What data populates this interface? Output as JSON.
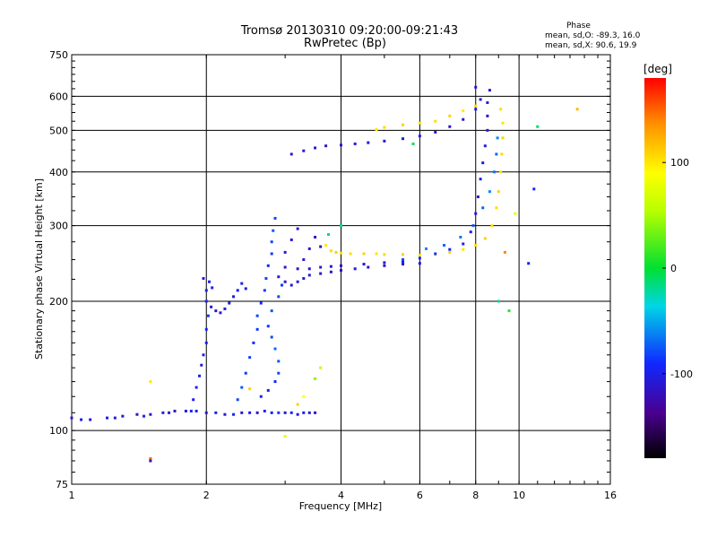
{
  "header": {
    "title_line1": "Tromsø 20130310 09:20:00-09:21:43",
    "title_line2": "RwPretec (Bp)"
  },
  "phase_box": {
    "heading": "Phase",
    "o_line": "mean, sd,O: -89.3, 16.0",
    "x_line": "mean, sd,X:  90.6, 19.9"
  },
  "colorbar": {
    "unit": "[deg]",
    "ticks": [
      {
        "value": 100,
        "label": "100"
      },
      {
        "value": 0,
        "label": "0"
      },
      {
        "value": -100,
        "label": "-100"
      }
    ],
    "range": [
      -180,
      180
    ]
  },
  "chart_data": {
    "type": "scatter",
    "title": "Tromsø 20130310 09:20:00-09:21:43",
    "subtitle": "RwPretec (Bp)",
    "xlabel": "Frequency [MHz]",
    "ylabel": "Stationary phase Virtual Height [km]",
    "x_scale": "log",
    "y_scale": "log",
    "xlim": [
      1,
      16
    ],
    "ylim": [
      75,
      750
    ],
    "grid": true,
    "x_ticks": [
      {
        "value": 1,
        "label": "1"
      },
      {
        "value": 2,
        "label": "2"
      },
      {
        "value": 4,
        "label": "4"
      },
      {
        "value": 6,
        "label": "6"
      },
      {
        "value": 8,
        "label": "8"
      },
      {
        "value": 10,
        "label": "10"
      },
      {
        "value": 16,
        "label": "16"
      }
    ],
    "y_ticks": [
      {
        "value": 75,
        "label": "75"
      },
      {
        "value": 100,
        "label": "100"
      },
      {
        "value": 200,
        "label": "200"
      },
      {
        "value": 300,
        "label": "300"
      },
      {
        "value": 400,
        "label": "400"
      },
      {
        "value": 500,
        "label": "500"
      },
      {
        "value": 600,
        "label": "600"
      },
      {
        "value": 750,
        "label": "750"
      }
    ],
    "points": [
      [
        1.0,
        107,
        -110
      ],
      [
        1.1,
        106,
        -105
      ],
      [
        1.2,
        107,
        -100
      ],
      [
        1.3,
        108,
        -110
      ],
      [
        1.4,
        109,
        -115
      ],
      [
        1.5,
        109,
        -110
      ],
      [
        1.6,
        110,
        -105
      ],
      [
        1.7,
        111,
        -115
      ],
      [
        1.8,
        111,
        -110
      ],
      [
        1.9,
        111,
        -100
      ],
      [
        2.0,
        110,
        -110
      ],
      [
        2.2,
        109,
        -105
      ],
      [
        2.4,
        110,
        -110
      ],
      [
        2.6,
        110,
        -115
      ],
      [
        2.8,
        110,
        -100
      ],
      [
        3.0,
        110,
        -110
      ],
      [
        3.2,
        109,
        -105
      ],
      [
        3.4,
        110,
        -110
      ],
      [
        3.5,
        110,
        -120
      ],
      [
        1.05,
        106,
        -100
      ],
      [
        1.25,
        107,
        -105
      ],
      [
        1.45,
        108,
        -95
      ],
      [
        1.65,
        110,
        -100
      ],
      [
        1.85,
        111,
        -95
      ],
      [
        2.1,
        110,
        -100
      ],
      [
        2.3,
        109,
        -95
      ],
      [
        2.5,
        110,
        -100
      ],
      [
        2.7,
        111,
        -95
      ],
      [
        2.9,
        110,
        -85
      ],
      [
        3.1,
        110,
        -95
      ],
      [
        3.3,
        110,
        -100
      ],
      [
        1.87,
        118,
        -100
      ],
      [
        1.9,
        126,
        -95
      ],
      [
        1.93,
        134,
        -100
      ],
      [
        1.95,
        142,
        -105
      ],
      [
        1.97,
        150,
        -100
      ],
      [
        2.0,
        160,
        -95
      ],
      [
        2.0,
        172,
        -90
      ],
      [
        2.02,
        185,
        -85
      ],
      [
        2.0,
        200,
        -95
      ],
      [
        2.0,
        212,
        -100
      ],
      [
        1.97,
        226,
        -105
      ],
      [
        2.03,
        222,
        -95
      ],
      [
        2.06,
        215,
        -100
      ],
      [
        2.05,
        194,
        -110
      ],
      [
        2.1,
        190,
        -115
      ],
      [
        2.15,
        188,
        -110
      ],
      [
        2.2,
        192,
        -105
      ],
      [
        2.25,
        198,
        -100
      ],
      [
        2.3,
        205,
        -105
      ],
      [
        2.35,
        212,
        -100
      ],
      [
        2.4,
        220,
        -95
      ],
      [
        2.45,
        214,
        -100
      ],
      [
        2.35,
        118,
        -80
      ],
      [
        2.4,
        126,
        -75
      ],
      [
        2.45,
        136,
        -85
      ],
      [
        2.5,
        148,
        -80
      ],
      [
        2.55,
        160,
        -90
      ],
      [
        2.6,
        172,
        -85
      ],
      [
        2.6,
        185,
        -80
      ],
      [
        2.65,
        198,
        -90
      ],
      [
        2.7,
        212,
        -85
      ],
      [
        2.72,
        226,
        -80
      ],
      [
        2.75,
        242,
        -90
      ],
      [
        2.8,
        258,
        -85
      ],
      [
        2.8,
        275,
        -80
      ],
      [
        2.82,
        292,
        -75
      ],
      [
        2.85,
        312,
        -80
      ],
      [
        2.65,
        120,
        -100
      ],
      [
        2.75,
        124,
        -95
      ],
      [
        2.85,
        130,
        -90
      ],
      [
        2.9,
        136,
        -80
      ],
      [
        2.9,
        145,
        -75
      ],
      [
        2.85,
        155,
        -70
      ],
      [
        2.8,
        165,
        -80
      ],
      [
        2.75,
        175,
        -85
      ],
      [
        2.8,
        190,
        -75
      ],
      [
        2.9,
        205,
        -80
      ],
      [
        2.95,
        218,
        -85
      ],
      [
        2.9,
        228,
        -100
      ],
      [
        3.0,
        222,
        -110
      ],
      [
        3.1,
        218,
        -105
      ],
      [
        3.2,
        222,
        -100
      ],
      [
        3.3,
        226,
        -110
      ],
      [
        3.4,
        230,
        -105
      ],
      [
        3.6,
        232,
        -110
      ],
      [
        3.8,
        234,
        -115
      ],
      [
        4.0,
        236,
        -110
      ],
      [
        4.3,
        238,
        -105
      ],
      [
        4.6,
        240,
        -110
      ],
      [
        5.0,
        242,
        -115
      ],
      [
        5.5,
        244,
        -110
      ],
      [
        6.0,
        245,
        -105
      ],
      [
        3.0,
        240,
        -110
      ],
      [
        3.2,
        238,
        -115
      ],
      [
        3.4,
        238,
        -110
      ],
      [
        3.6,
        240,
        -105
      ],
      [
        3.8,
        241,
        -110
      ],
      [
        4.0,
        242,
        -115
      ],
      [
        4.5,
        244,
        -110
      ],
      [
        5.0,
        246,
        -105
      ],
      [
        5.5,
        247,
        -110
      ],
      [
        3.3,
        250,
        -110
      ],
      [
        3.4,
        265,
        -105
      ],
      [
        3.5,
        282,
        -110
      ],
      [
        3.6,
        268,
        -115
      ],
      [
        3.0,
        260,
        -110
      ],
      [
        3.1,
        278,
        -105
      ],
      [
        3.2,
        295,
        -110
      ],
      [
        4.0,
        300,
        -20
      ],
      [
        3.75,
        286,
        -15
      ],
      [
        3.7,
        270,
        100
      ],
      [
        3.8,
        262,
        105
      ],
      [
        3.9,
        260,
        110
      ],
      [
        4.0,
        259,
        100
      ],
      [
        4.2,
        258,
        105
      ],
      [
        4.5,
        258,
        110
      ],
      [
        4.8,
        258,
        100
      ],
      [
        5.0,
        257,
        105
      ],
      [
        5.5,
        257,
        110
      ],
      [
        6.0,
        256,
        100
      ],
      [
        6.5,
        257,
        105
      ],
      [
        7.0,
        260,
        110
      ],
      [
        7.5,
        264,
        100
      ],
      [
        8.0,
        270,
        105
      ],
      [
        8.4,
        280,
        110
      ],
      [
        8.7,
        300,
        100
      ],
      [
        8.9,
        330,
        105
      ],
      [
        9.0,
        360,
        110
      ],
      [
        9.1,
        400,
        100
      ],
      [
        9.15,
        440,
        105
      ],
      [
        9.2,
        480,
        110
      ],
      [
        9.2,
        520,
        100
      ],
      [
        9.1,
        560,
        105
      ],
      [
        5.5,
        250,
        -80
      ],
      [
        6.0,
        252,
        -90
      ],
      [
        6.5,
        258,
        -85
      ],
      [
        7.0,
        264,
        -95
      ],
      [
        7.5,
        272,
        -100
      ],
      [
        7.8,
        290,
        -105
      ],
      [
        8.0,
        320,
        -110
      ],
      [
        8.1,
        350,
        -105
      ],
      [
        8.2,
        385,
        -100
      ],
      [
        8.3,
        420,
        -110
      ],
      [
        8.4,
        460,
        -105
      ],
      [
        8.5,
        500,
        -110
      ],
      [
        8.5,
        540,
        -115
      ],
      [
        8.5,
        580,
        -100
      ],
      [
        8.6,
        620,
        -110
      ],
      [
        6.2,
        265,
        -60
      ],
      [
        6.8,
        270,
        -70
      ],
      [
        7.4,
        282,
        -65
      ],
      [
        7.9,
        300,
        -75
      ],
      [
        8.3,
        330,
        -70
      ],
      [
        8.6,
        360,
        -60
      ],
      [
        8.8,
        400,
        -65
      ],
      [
        8.9,
        440,
        -70
      ],
      [
        8.95,
        480,
        -60
      ],
      [
        3.1,
        440,
        -110
      ],
      [
        3.3,
        448,
        -105
      ],
      [
        3.5,
        455,
        -110
      ],
      [
        3.7,
        460,
        -115
      ],
      [
        4.0,
        462,
        -110
      ],
      [
        4.3,
        465,
        -105
      ],
      [
        4.6,
        468,
        -110
      ],
      [
        5.0,
        472,
        -115
      ],
      [
        5.5,
        478,
        -110
      ],
      [
        6.0,
        485,
        -105
      ],
      [
        6.5,
        495,
        -110
      ],
      [
        7.0,
        510,
        -115
      ],
      [
        7.5,
        530,
        -110
      ],
      [
        8.0,
        560,
        -105
      ],
      [
        8.2,
        590,
        -110
      ],
      [
        8.0,
        630,
        -115
      ],
      [
        4.8,
        502,
        100
      ],
      [
        5.0,
        508,
        105
      ],
      [
        5.5,
        515,
        110
      ],
      [
        6.0,
        520,
        100
      ],
      [
        6.5,
        525,
        105
      ],
      [
        7.0,
        540,
        110
      ],
      [
        7.5,
        555,
        100
      ],
      [
        8.0,
        570,
        105
      ],
      [
        1.5,
        130,
        100
      ],
      [
        2.5,
        125,
        110
      ],
      [
        3.3,
        120,
        90
      ],
      [
        3.0,
        97,
        80
      ],
      [
        3.6,
        140,
        60
      ],
      [
        5.8,
        465,
        -10
      ],
      [
        9.0,
        200,
        -20
      ],
      [
        9.5,
        190,
        10
      ],
      [
        10.5,
        245,
        -100
      ],
      [
        11.0,
        510,
        -10
      ],
      [
        10.8,
        365,
        -90
      ],
      [
        13.5,
        560,
        120
      ],
      [
        9.8,
        320,
        80
      ],
      [
        9.3,
        260,
        140
      ],
      [
        1.5,
        86,
        150
      ],
      [
        1.5,
        85,
        -120
      ],
      [
        3.5,
        132,
        40
      ],
      [
        3.2,
        115,
        110
      ]
    ]
  }
}
